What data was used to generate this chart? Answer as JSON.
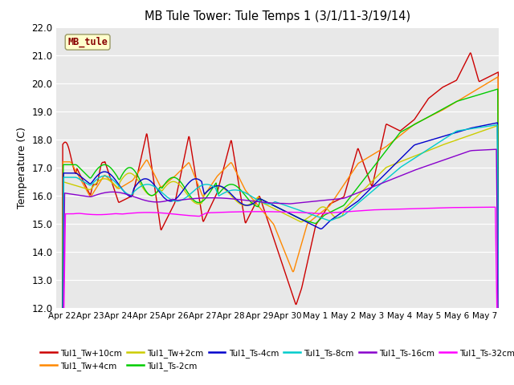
{
  "title": "MB Tule Tower: Tule Temps 1 (3/1/11-3/19/14)",
  "ylabel": "Temperature (C)",
  "ylim": [
    12.0,
    22.0
  ],
  "yticks": [
    12.0,
    13.0,
    14.0,
    15.0,
    16.0,
    17.0,
    18.0,
    19.0,
    20.0,
    21.0,
    22.0
  ],
  "bg_color": "#e8e8e8",
  "series_colors": {
    "Tul1_Tw+10cm": "#cc0000",
    "Tul1_Tw+4cm": "#ff8800",
    "Tul1_Tw+2cm": "#cccc00",
    "Tul1_Ts-2cm": "#00cc00",
    "Tul1_Ts-4cm": "#0000cc",
    "Tul1_Ts-8cm": "#00cccc",
    "Tul1_Ts-16cm": "#8800cc",
    "Tul1_Ts-32cm": "#ff00ff"
  },
  "legend_box_color": "#ffffcc",
  "legend_box_text": "MB_tule",
  "legend_box_text_color": "#880000",
  "xtick_labels": [
    "Apr 22",
    "Apr 23",
    "Apr 24",
    "Apr 25",
    "Apr 26",
    "Apr 27",
    "Apr 28",
    "Apr 29",
    "Apr 30",
    "May 1",
    "May 2",
    "May 3",
    "May 4",
    "May 5",
    "May 6",
    "May 7"
  ]
}
